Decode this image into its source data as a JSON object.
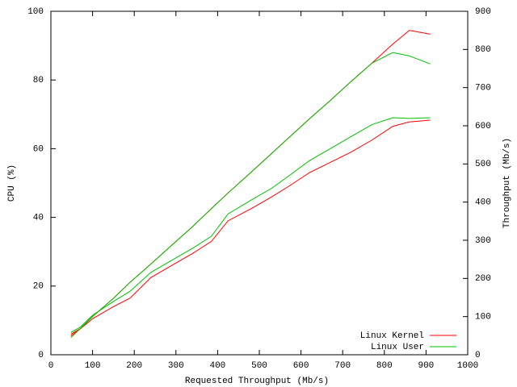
{
  "chart_data": {
    "type": "line",
    "x_label": "Requested Throughput (Mb/s)",
    "y_label": "CPU (%)",
    "y2_label": "Throughput (Mb/s)",
    "x": [
      48,
      70,
      100,
      150,
      190,
      240,
      290,
      340,
      385,
      425,
      480,
      530,
      570,
      620,
      670,
      720,
      770,
      820,
      860,
      910
    ],
    "series": [
      {
        "name": "Linux Kernel",
        "color": "#ff0000",
        "values": [
          5.5,
          7.5,
          10.5,
          14,
          16.5,
          22.5,
          26,
          29.5,
          33,
          39,
          42.5,
          46,
          49,
          53,
          56,
          59,
          62.5,
          66.5,
          67.8,
          68.3
        ]
      },
      {
        "name": "Linux User",
        "color": "#00c000",
        "values": [
          6.5,
          8,
          11.5,
          15.5,
          18.5,
          24,
          27.5,
          31,
          34.5,
          41,
          45,
          48.5,
          52,
          56.5,
          60,
          63.5,
          67,
          69,
          68.8,
          69
        ]
      },
      {
        "color": "#ff0000",
        "axis": "y2",
        "values": [
          54,
          68,
          100,
          148,
          190,
          238,
          287,
          336,
          383,
          424,
          478,
          528,
          568,
          618,
          666,
          716,
          764,
          814,
          850,
          840
        ]
      },
      {
        "color": "#00c000",
        "axis": "y2",
        "values": [
          45,
          68,
          100,
          148,
          190,
          238,
          287,
          336,
          383,
          424,
          478,
          528,
          568,
          618,
          666,
          716,
          764,
          792,
          783,
          762
        ]
      }
    ],
    "xlim": [
      0,
      1000
    ],
    "xticks": [
      0,
      100,
      200,
      300,
      400,
      500,
      600,
      700,
      800,
      900,
      1000
    ],
    "ylim": [
      0,
      100
    ],
    "yticks": [
      0,
      20,
      40,
      60,
      80,
      100
    ],
    "y2lim": [
      0,
      900
    ],
    "y2ticks": [
      0,
      100,
      200,
      300,
      400,
      500,
      600,
      700,
      800,
      900
    ],
    "legend": "lower right",
    "grid": false
  }
}
